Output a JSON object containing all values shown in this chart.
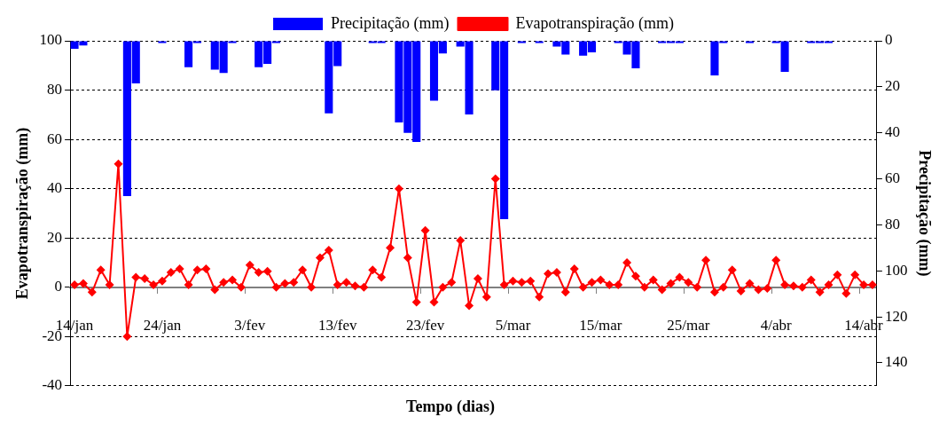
{
  "chart_data": {
    "type": "bar",
    "xlabel": "Tempo (dias)",
    "ylabel": "Evapotranspiração (mm)",
    "y2label": "Precipitação (mm)",
    "categories": [
      "14/jan",
      null,
      null,
      null,
      null,
      null,
      null,
      null,
      null,
      null,
      "24/jan",
      null,
      null,
      null,
      null,
      null,
      null,
      null,
      null,
      null,
      "3/fev",
      null,
      null,
      null,
      null,
      null,
      null,
      null,
      null,
      null,
      "13/fev",
      null,
      null,
      null,
      null,
      null,
      null,
      null,
      null,
      null,
      "23/fev",
      null,
      null,
      null,
      null,
      null,
      null,
      null,
      null,
      null,
      "5/mar",
      null,
      null,
      null,
      null,
      null,
      null,
      null,
      null,
      null,
      "15/mar",
      null,
      null,
      null,
      null,
      null,
      null,
      null,
      null,
      null,
      "25/mar",
      null,
      null,
      null,
      null,
      null,
      null,
      null,
      null,
      null,
      "4/abr",
      null,
      null,
      null,
      null,
      null,
      null,
      null,
      null,
      null,
      "14/abr",
      null
    ],
    "series": [
      {
        "name": "Precipitação (mm)",
        "axis": "y2",
        "color": "#0000ff",
        "values": [
          3.5,
          2,
          0,
          0,
          0,
          0,
          67.5,
          18.5,
          0,
          0,
          1,
          0,
          0,
          11.5,
          1,
          0,
          12.5,
          14,
          1,
          0,
          0,
          11.5,
          10,
          1,
          0,
          0,
          0,
          0,
          0,
          31.5,
          11,
          0,
          0,
          0,
          1,
          1,
          0,
          35.5,
          40,
          44,
          0,
          26,
          5.5,
          0,
          2.5,
          32,
          0,
          0,
          21.5,
          77.5,
          0,
          1,
          0,
          1,
          0,
          2.5,
          6,
          0,
          6.5,
          5,
          0,
          0,
          1,
          6,
          12,
          0,
          0,
          1,
          1,
          1,
          0,
          0,
          0,
          15,
          1,
          0,
          0,
          1,
          0,
          0,
          1,
          13.5,
          0,
          0,
          1,
          1,
          1,
          0,
          0,
          0,
          0,
          0
        ]
      },
      {
        "name": "Evapotranspiração (mm)",
        "type": "line",
        "color": "#ff0000",
        "marker": "diamond",
        "values": [
          1,
          1.5,
          -2,
          7,
          1,
          50,
          -20,
          4,
          3.5,
          1,
          2.5,
          6,
          7.5,
          1,
          7,
          7.5,
          -1,
          2,
          3,
          0,
          9,
          6,
          6.5,
          0,
          1.5,
          2,
          7,
          0,
          12,
          15,
          1,
          2,
          0.5,
          0,
          7,
          4,
          16,
          40,
          12,
          -6,
          23,
          -6,
          0,
          2,
          19,
          -7.5,
          3.5,
          -4,
          44,
          1,
          2.5,
          2,
          2.5,
          -4,
          5.5,
          6,
          -2,
          7.5,
          0,
          2,
          3,
          1,
          1,
          10,
          4.5,
          0,
          3,
          -1,
          1.5,
          4,
          2,
          0,
          11,
          -2,
          0,
          7,
          -1.5,
          1.5,
          -1,
          -0.5,
          11,
          1,
          0.5,
          0,
          3,
          -2,
          1,
          5,
          -2.5,
          5,
          1,
          1
        ]
      }
    ],
    "ylim": [
      -40,
      100
    ],
    "yticks": [
      -40,
      -20,
      0,
      20,
      40,
      60,
      80,
      100
    ],
    "y2lim": [
      150,
      0
    ],
    "y2ticks": [
      0,
      20,
      40,
      60,
      80,
      100,
      120,
      140
    ],
    "grid": "y",
    "legend": "top"
  }
}
